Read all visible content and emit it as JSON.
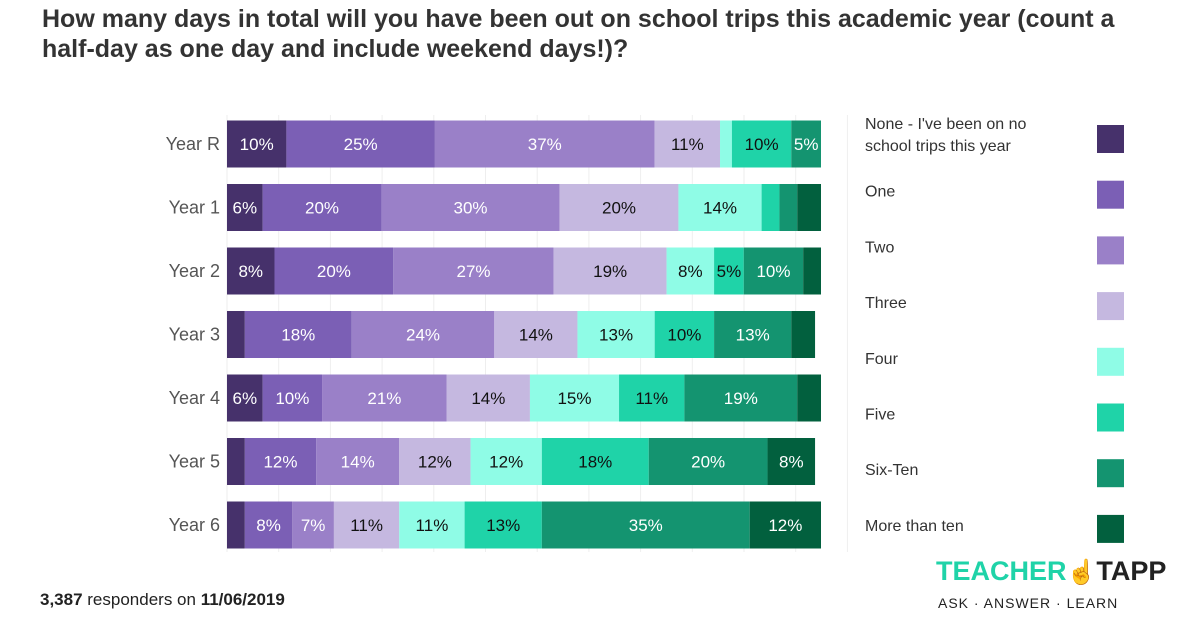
{
  "chart_data": {
    "type": "bar",
    "orientation": "horizontal",
    "stacked": true,
    "title": "How many days in total will you have been out on school trips this academic year (count a half-day as one day and include weekend days!)?",
    "categories": [
      "Year R",
      "Year 1",
      "Year 2",
      "Year 3",
      "Year 4",
      "Year 5",
      "Year 6"
    ],
    "series": [
      {
        "name": "None - I've been on no school trips this year",
        "color": "#46316b",
        "label_color": "#ffffff",
        "values": [
          10,
          6,
          8,
          3,
          6,
          3,
          3
        ],
        "labeled": [
          true,
          true,
          true,
          false,
          true,
          false,
          false
        ]
      },
      {
        "name": "One",
        "color": "#7b5fb5",
        "label_color": "#ffffff",
        "values": [
          25,
          20,
          20,
          18,
          10,
          12,
          8
        ],
        "labeled": [
          true,
          true,
          true,
          true,
          true,
          true,
          true
        ]
      },
      {
        "name": "Two",
        "color": "#9a80c8",
        "label_color": "#ffffff",
        "values": [
          37,
          30,
          27,
          24,
          21,
          14,
          7
        ],
        "labeled": [
          true,
          true,
          true,
          true,
          true,
          true,
          true
        ]
      },
      {
        "name": "Three",
        "color": "#c5b8e0",
        "label_color": "#111111",
        "values": [
          11,
          20,
          19,
          14,
          14,
          12,
          11
        ],
        "labeled": [
          true,
          true,
          true,
          true,
          true,
          true,
          true
        ]
      },
      {
        "name": "Four",
        "color": "#8ffce6",
        "label_color": "#111111",
        "values": [
          2,
          14,
          8,
          13,
          15,
          12,
          11
        ],
        "labeled": [
          false,
          true,
          true,
          true,
          true,
          true,
          true
        ]
      },
      {
        "name": "Five",
        "color": "#1fd3a8",
        "label_color": "#111111",
        "values": [
          10,
          3,
          5,
          10,
          11,
          18,
          13
        ],
        "labeled": [
          true,
          false,
          true,
          true,
          true,
          true,
          true
        ]
      },
      {
        "name": "Six-Ten",
        "color": "#149470",
        "label_color": "#ffffff",
        "values": [
          5,
          3,
          10,
          13,
          19,
          20,
          35
        ],
        "labeled": [
          true,
          false,
          true,
          true,
          true,
          true,
          true
        ]
      },
      {
        "name": "More than ten",
        "color": "#02603e",
        "label_color": "#ffffff",
        "values": [
          0,
          4,
          3,
          4,
          4,
          8,
          12
        ],
        "labeled": [
          false,
          false,
          false,
          false,
          false,
          true,
          true
        ]
      }
    ],
    "xlim": [
      0,
      100
    ],
    "value_suffix": "%",
    "grid": true,
    "legend_placement": "right"
  },
  "footer": {
    "count": "3,387",
    "text": " responders on ",
    "date": "11/06/2019"
  },
  "logo": {
    "main1": "TEACHER",
    "main2": "TAPP",
    "sub": "ASK · ANSWER · LEARN"
  }
}
